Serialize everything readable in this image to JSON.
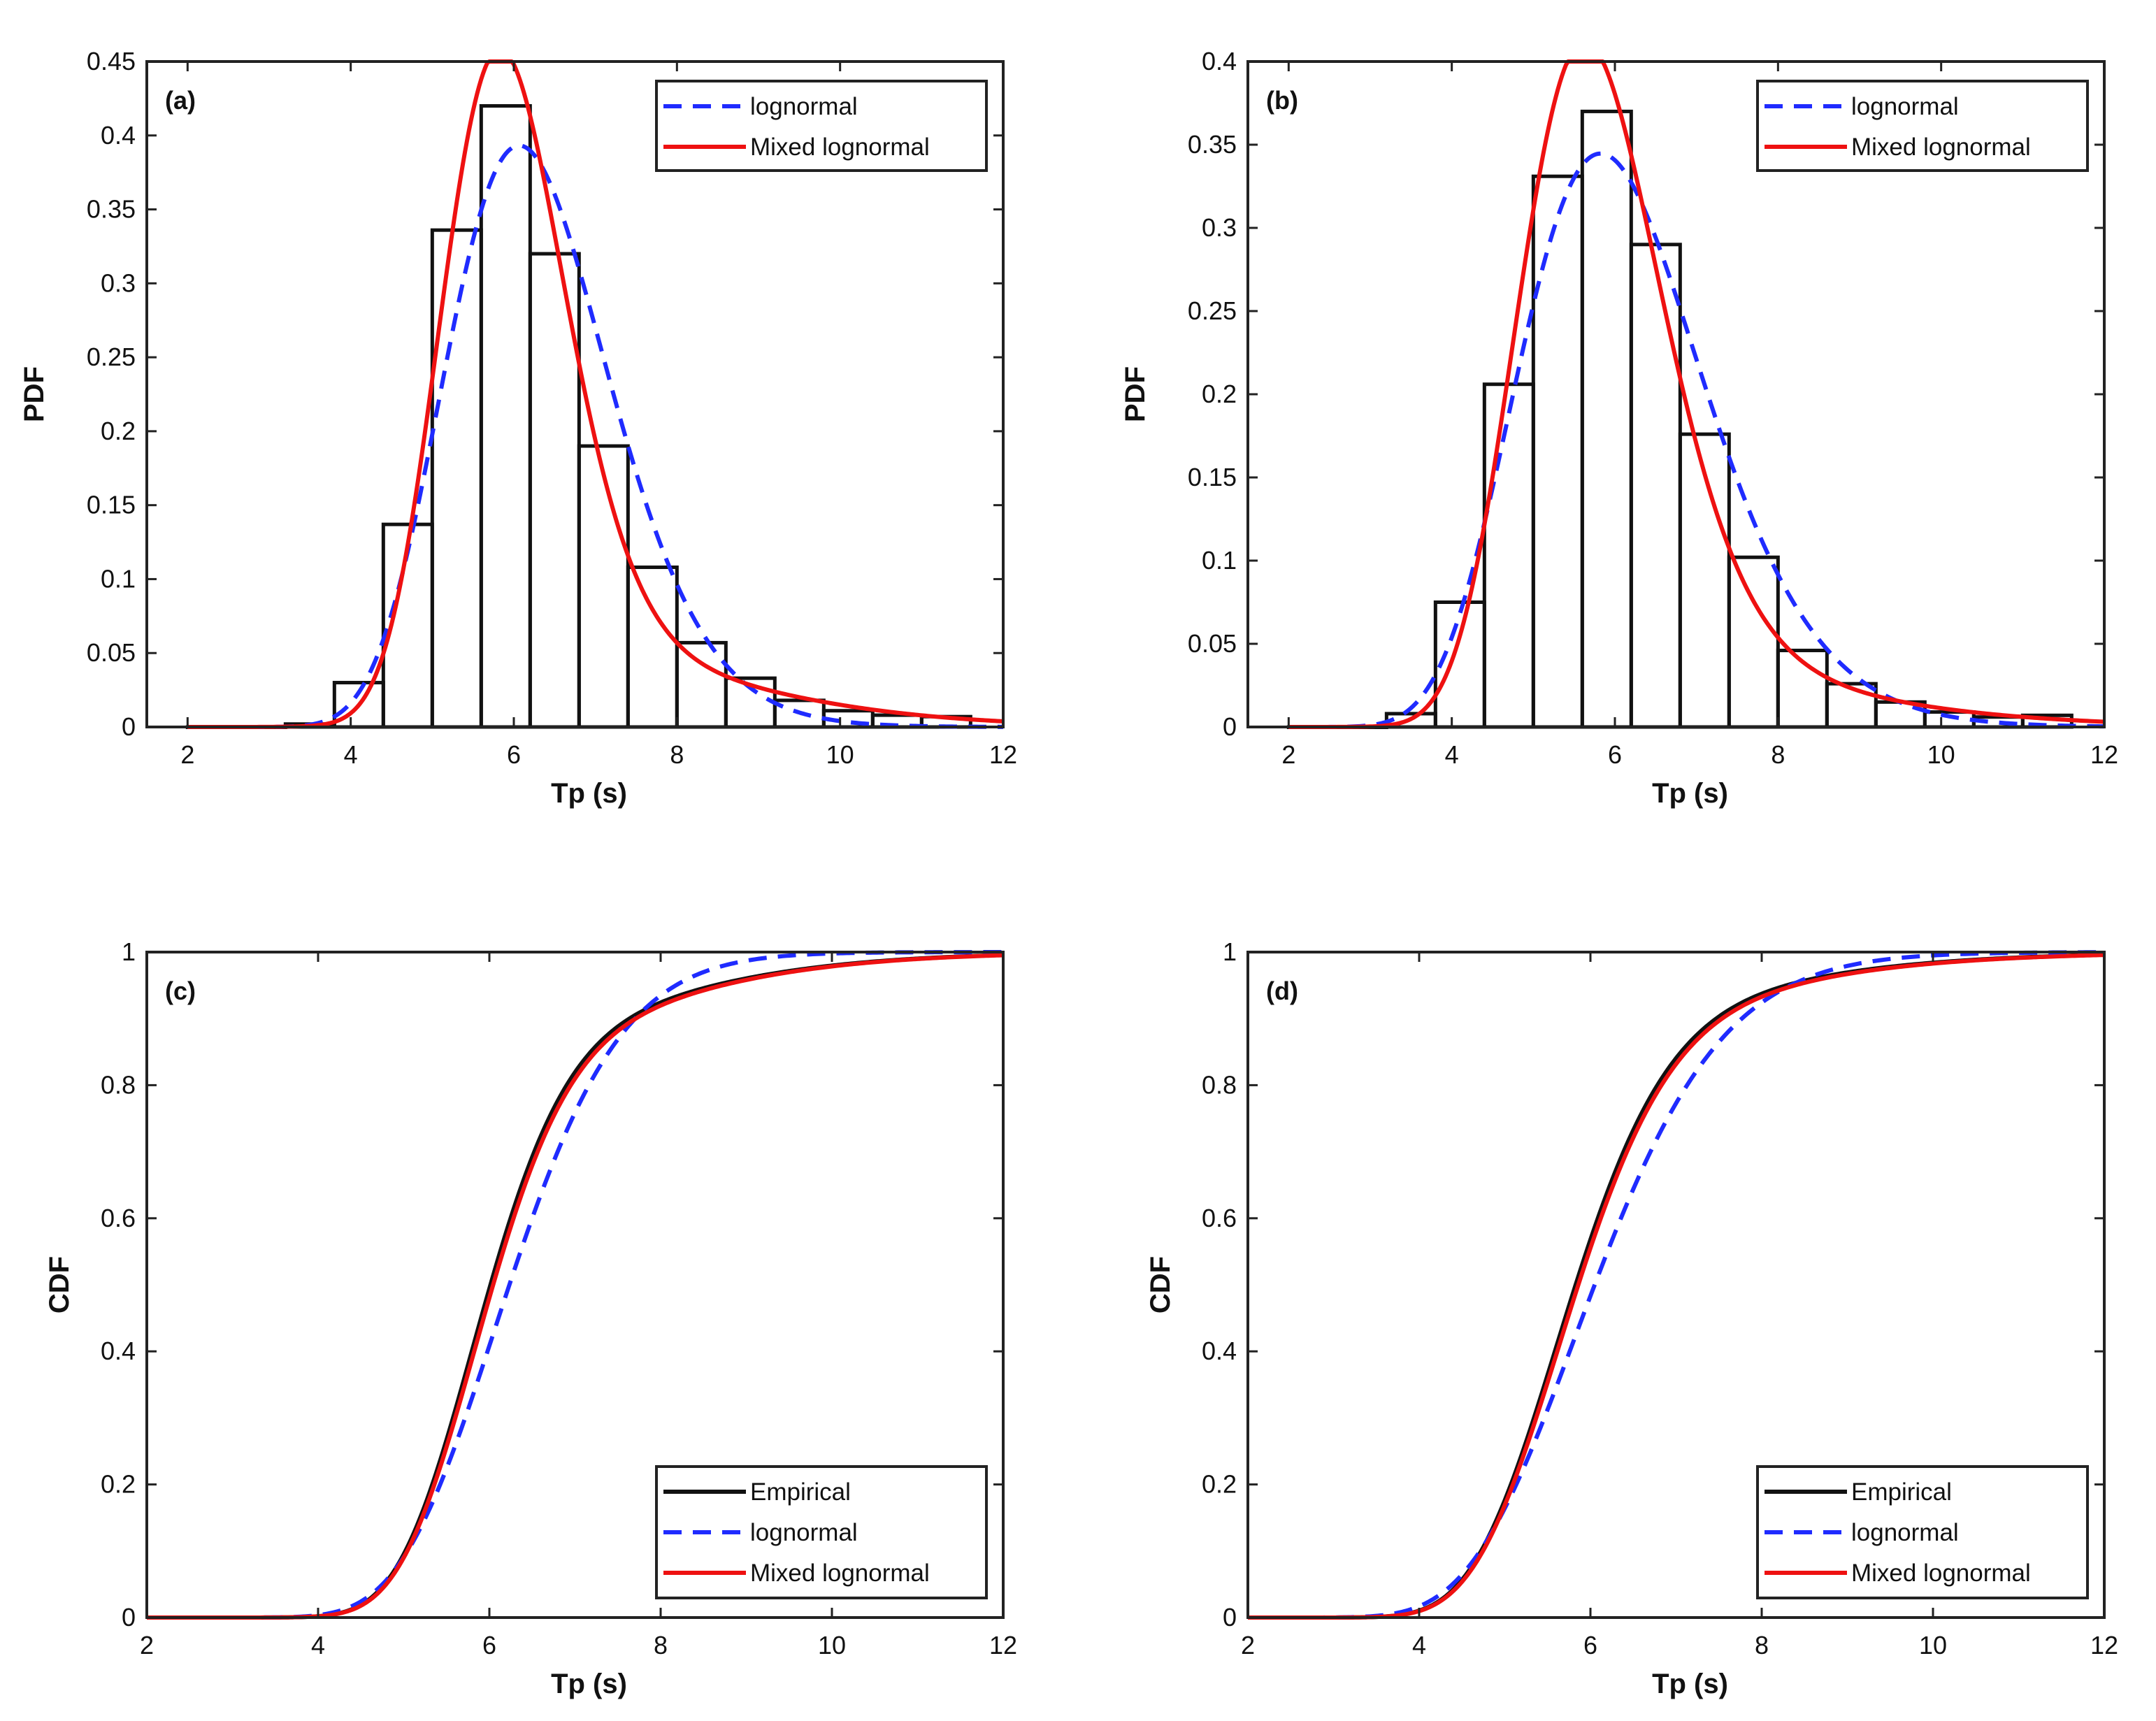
{
  "chart_data": [
    {
      "id": "a",
      "type": "bar",
      "panel_label": "(a)",
      "xlabel": "Tp (s)",
      "ylabel": "PDF",
      "xlim": [
        1.5,
        12
      ],
      "ylim": [
        0,
        0.45
      ],
      "xticks": [
        2,
        4,
        6,
        8,
        10,
        12
      ],
      "yticks": [
        0,
        0.05,
        0.1,
        0.15,
        0.2,
        0.25,
        0.3,
        0.35,
        0.4,
        0.45
      ],
      "ytick_labels": [
        "0",
        "0.05",
        "0.1",
        "0.15",
        "0.2",
        "0.25",
        "0.3",
        "0.35",
        "0.4",
        "0.45"
      ],
      "legend_position": "top-right",
      "histogram": {
        "bin_edges": [
          2,
          2.6,
          3.2,
          3.8,
          4.4,
          5.0,
          5.6,
          6.2,
          6.8,
          7.4,
          8.0,
          8.6,
          9.2,
          9.8,
          10.4,
          11.0,
          11.6
        ],
        "values": [
          0,
          0,
          0.002,
          0.03,
          0.137,
          0.336,
          0.42,
          0.32,
          0.19,
          0.108,
          0.057,
          0.033,
          0.018,
          0.011,
          0.008,
          0.007
        ]
      },
      "series": [
        {
          "name": "lognormal",
          "dist": "lognormal",
          "components": [
            {
              "w": 1.0,
              "mu": 1.83,
              "sigma": 0.165
            }
          ]
        },
        {
          "name": "Mixed lognormal",
          "dist": "lognormal",
          "components": [
            {
              "w": 0.82,
              "mu": 1.776,
              "sigma": 0.13
            },
            {
              "w": 0.18,
              "mu": 2.02,
              "sigma": 0.24
            }
          ]
        }
      ]
    },
    {
      "id": "b",
      "type": "bar",
      "panel_label": "(b)",
      "xlabel": "Tp (s)",
      "ylabel": "PDF",
      "xlim": [
        1.5,
        12
      ],
      "ylim": [
        0,
        0.4
      ],
      "xticks": [
        2,
        4,
        6,
        8,
        10,
        12
      ],
      "yticks": [
        0,
        0.05,
        0.1,
        0.15,
        0.2,
        0.25,
        0.3,
        0.35,
        0.4
      ],
      "ytick_labels": [
        "0",
        "0.05",
        "0.1",
        "0.15",
        "0.2",
        "0.25",
        "0.3",
        "0.35",
        "0.4"
      ],
      "legend_position": "top-right",
      "histogram": {
        "bin_edges": [
          2,
          2.6,
          3.2,
          3.8,
          4.4,
          5.0,
          5.6,
          6.2,
          6.8,
          7.4,
          8.0,
          8.6,
          9.2,
          9.8,
          10.4,
          11.0,
          11.6
        ],
        "values": [
          0,
          0,
          0.008,
          0.075,
          0.206,
          0.331,
          0.37,
          0.29,
          0.176,
          0.102,
          0.046,
          0.026,
          0.015,
          0.009,
          0.006,
          0.007
        ]
      },
      "series": [
        {
          "name": "lognormal",
          "dist": "lognormal",
          "components": [
            {
              "w": 1.0,
              "mu": 1.8,
              "sigma": 0.195
            }
          ]
        },
        {
          "name": "Mixed lognormal",
          "dist": "lognormal",
          "components": [
            {
              "w": 0.86,
              "mu": 1.748,
              "sigma": 0.155
            },
            {
              "w": 0.14,
              "mu": 2.0,
              "sigma": 0.26
            }
          ]
        }
      ]
    },
    {
      "id": "c",
      "type": "line",
      "panel_label": "(c)",
      "xlabel": "Tp (s)",
      "ylabel": "CDF",
      "xlim": [
        2,
        12
      ],
      "ylim": [
        0,
        1
      ],
      "xticks": [
        2,
        4,
        6,
        8,
        10,
        12
      ],
      "yticks": [
        0,
        0.2,
        0.4,
        0.6,
        0.8,
        1
      ],
      "ytick_labels": [
        "0",
        "0.2",
        "0.4",
        "0.6",
        "0.8",
        "1"
      ],
      "legend_position": "bottom-right",
      "series": [
        {
          "name": "Empirical",
          "dist": "lognormal",
          "components": [
            {
              "w": 0.83,
              "mu": 1.772,
              "sigma": 0.13
            },
            {
              "w": 0.17,
              "mu": 2.02,
              "sigma": 0.24
            }
          ]
        },
        {
          "name": "lognormal",
          "dist": "lognormal",
          "components": [
            {
              "w": 1.0,
              "mu": 1.83,
              "sigma": 0.165
            }
          ]
        },
        {
          "name": "Mixed lognormal",
          "dist": "lognormal",
          "components": [
            {
              "w": 0.82,
              "mu": 1.776,
              "sigma": 0.13
            },
            {
              "w": 0.18,
              "mu": 2.02,
              "sigma": 0.24
            }
          ]
        }
      ]
    },
    {
      "id": "d",
      "type": "line",
      "panel_label": "(d)",
      "xlabel": "Tp (s)",
      "ylabel": "CDF",
      "xlim": [
        2,
        12
      ],
      "ylim": [
        0,
        1
      ],
      "xticks": [
        2,
        4,
        6,
        8,
        10,
        12
      ],
      "yticks": [
        0,
        0.2,
        0.4,
        0.6,
        0.8,
        1
      ],
      "ytick_labels": [
        "0",
        "0.2",
        "0.4",
        "0.6",
        "0.8",
        "1"
      ],
      "legend_position": "bottom-right",
      "series": [
        {
          "name": "Empirical",
          "dist": "lognormal",
          "components": [
            {
              "w": 0.87,
              "mu": 1.744,
              "sigma": 0.155
            },
            {
              "w": 0.13,
              "mu": 2.0,
              "sigma": 0.26
            }
          ]
        },
        {
          "name": "lognormal",
          "dist": "lognormal",
          "components": [
            {
              "w": 1.0,
              "mu": 1.8,
              "sigma": 0.195
            }
          ]
        },
        {
          "name": "Mixed lognormal",
          "dist": "lognormal",
          "components": [
            {
              "w": 0.86,
              "mu": 1.748,
              "sigma": 0.155
            },
            {
              "w": 0.14,
              "mu": 2.0,
              "sigma": 0.26
            }
          ]
        }
      ]
    }
  ],
  "colors": {
    "axis": "#222222",
    "histogram": "#111111",
    "empirical": "#111111",
    "lognormal": "#1f2bff",
    "mixed": "#ee1111"
  }
}
